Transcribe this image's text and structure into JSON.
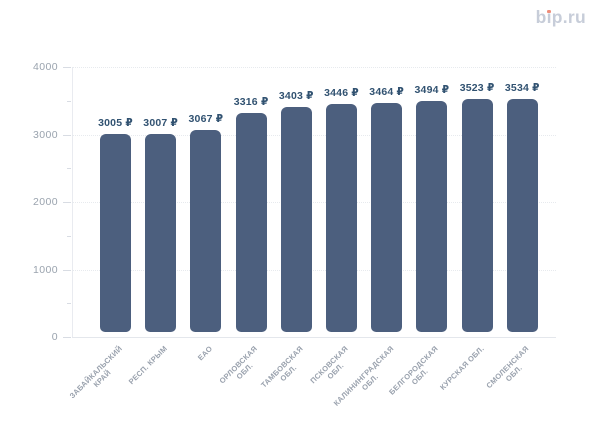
{
  "logo": {
    "text": "bip.ru",
    "part_b": "b",
    "part_i": "ı",
    "part_rest": "p.ru",
    "text_color": "#c7cdd9",
    "dot_color": "#ef8d7a"
  },
  "chart_data": {
    "type": "bar",
    "title": "",
    "xlabel": "",
    "ylabel": "",
    "currency": "₽",
    "categories": [
      "ЗАБАЙКАЛЬСКИЙ\nКРАЙ",
      "РЕСП. КРЫМ",
      "ЕАО",
      "ОРЛОВСКАЯ\nОБЛ.",
      "ТАМБОВСКАЯ\nОБЛ.",
      "ПСКОВСКАЯ\nОБЛ.",
      "КАЛИНИНГРАДСКАЯ\nОБЛ.",
      "БЕЛГОРОДСКАЯ\nОБЛ.",
      "КУРСКАЯ ОБЛ.",
      "СМОЛЕНСКАЯ\nОБЛ."
    ],
    "values": [
      3005,
      3007,
      3067,
      3316,
      3403,
      3446,
      3464,
      3494,
      3523,
      3534
    ],
    "value_labels": [
      "3005 ₽",
      "3007 ₽",
      "3067 ₽",
      "3316 ₽",
      "3403 ₽",
      "3446 ₽",
      "3464 ₽",
      "3494 ₽",
      "3523 ₽",
      "3534 ₽"
    ],
    "ylim": [
      0,
      4000
    ],
    "yticks": [
      0,
      1000,
      2000,
      3000,
      4000
    ],
    "minor_yticks": [
      500,
      1500,
      2500,
      3500
    ],
    "bar_color": "#4c5f7e",
    "grid": "dotted-horizontal",
    "legend": "none"
  }
}
